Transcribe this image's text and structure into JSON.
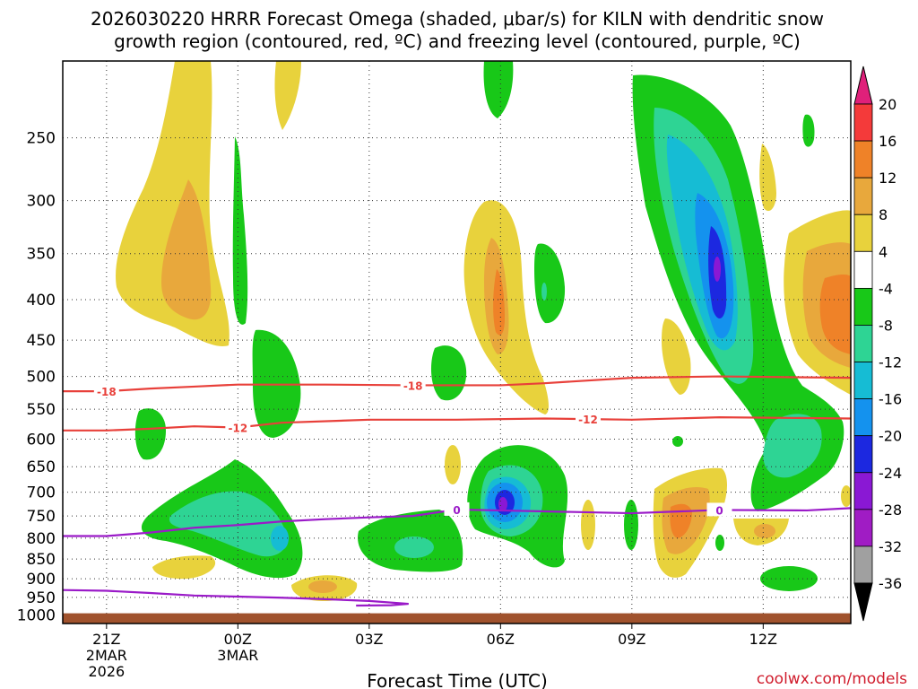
{
  "chart_data": {
    "type": "heatmap",
    "title_line1": "2026030220 HRRR Forecast Omega (shaded, μbar/s) for KILN with dendritic snow",
    "title_line2": "growth region (contoured, red, ºC) and freezing level (contoured, purple, ºC)",
    "xlabel": "Forecast Time (UTC)",
    "credit": "coolwx.com/models",
    "x_range": [
      -1,
      17
    ],
    "y_range_hpa": [
      1025,
      200
    ],
    "x_ticks": [
      {
        "hour": 0,
        "label": "21Z",
        "date1": "2MAR",
        "date2": "2026"
      },
      {
        "hour": 3,
        "label": "00Z",
        "date1": "3MAR",
        "date2": ""
      },
      {
        "hour": 6,
        "label": "03Z",
        "date1": "",
        "date2": ""
      },
      {
        "hour": 9,
        "label": "06Z",
        "date1": "",
        "date2": ""
      },
      {
        "hour": 12,
        "label": "09Z",
        "date1": "",
        "date2": ""
      },
      {
        "hour": 15,
        "label": "12Z",
        "date1": "",
        "date2": ""
      }
    ],
    "y_ticks": [
      "250",
      "300",
      "350",
      "400",
      "450",
      "500",
      "550",
      "600",
      "650",
      "700",
      "750",
      "800",
      "850",
      "900",
      "950",
      "1000"
    ],
    "colorbar": {
      "labels": [
        "20",
        "16",
        "12",
        "8",
        "4",
        "-4",
        "-8",
        "-12",
        "-16",
        "-20",
        "-24",
        "-28",
        "-32",
        "-36"
      ],
      "colors": [
        "#e0207a",
        "#f43a3a",
        "#ef8228",
        "#e8a83c",
        "#e8d23c",
        "#ffffff",
        "#18c818",
        "#2ed494",
        "#16bcd4",
        "#1492ee",
        "#1c28e0",
        "#8a18d4",
        "#a01cc4",
        "#a0a0a0",
        "#000000"
      ]
    },
    "contours": {
      "dgz_top": {
        "label": "-18",
        "color": "#e8403a",
        "points": [
          [
            -1,
            522
          ],
          [
            0,
            522
          ],
          [
            1,
            518
          ],
          [
            2,
            515
          ],
          [
            3,
            512
          ],
          [
            5,
            512
          ],
          [
            7,
            513
          ],
          [
            9,
            513
          ],
          [
            10,
            510
          ],
          [
            12,
            502
          ],
          [
            14,
            500
          ],
          [
            17,
            502
          ]
        ]
      },
      "dgz_bottom": {
        "label": "-12",
        "color": "#e8403a",
        "points": [
          [
            -1,
            585
          ],
          [
            0,
            585
          ],
          [
            1,
            582
          ],
          [
            2,
            578
          ],
          [
            3,
            580
          ],
          [
            4,
            572
          ],
          [
            6,
            567
          ],
          [
            8,
            567
          ],
          [
            10,
            565
          ],
          [
            12,
            567
          ],
          [
            14,
            563
          ],
          [
            17,
            565
          ]
        ]
      },
      "freezing_level": {
        "label": "0",
        "color": "#9a1ac8",
        "points": [
          [
            -1,
            795
          ],
          [
            0,
            795
          ],
          [
            1,
            787
          ],
          [
            2,
            776
          ],
          [
            3,
            770
          ],
          [
            4,
            762
          ],
          [
            5,
            757
          ],
          [
            6,
            753
          ],
          [
            7,
            750
          ],
          [
            8,
            736
          ],
          [
            10,
            740
          ],
          [
            12,
            744
          ],
          [
            14,
            737
          ],
          [
            16,
            738
          ],
          [
            17,
            733
          ]
        ]
      },
      "freezing_level_low": {
        "color": "#9a1ac8",
        "points": [
          [
            -1,
            930
          ],
          [
            0,
            932
          ],
          [
            1,
            938
          ],
          [
            2,
            945
          ],
          [
            3,
            948
          ],
          [
            4,
            951
          ],
          [
            5,
            955
          ],
          [
            6,
            960
          ],
          [
            6.9,
            968
          ],
          [
            6.5,
            972
          ],
          [
            5.7,
            973
          ]
        ]
      }
    },
    "omega_blobs": [
      {
        "hour": 1.3,
        "hpa": 390,
        "w_hours": 1.2,
        "h_hpa": 210,
        "value": 8
      },
      {
        "hour": 9.0,
        "hpa": 410,
        "w_hours": 0.6,
        "h_hpa": 130,
        "value": 10
      },
      {
        "hour": 9.0,
        "hpa": 740,
        "w_hours": 0.7,
        "h_hpa": 55,
        "value": -28
      },
      {
        "hour": 14.0,
        "hpa": 380,
        "w_hours": 0.4,
        "h_hpa": 70,
        "value": -26
      },
      {
        "hour": 12.8,
        "hpa": 765,
        "w_hours": 0.6,
        "h_hpa": 70,
        "value": 12
      },
      {
        "hour": 2.0,
        "hpa": 790,
        "w_hours": 1.2,
        "h_hpa": 110,
        "value": -12
      },
      {
        "hour": 16.5,
        "hpa": 420,
        "w_hours": 1.2,
        "h_hpa": 150,
        "value": 10
      }
    ],
    "ground_level_hpa": 995
  }
}
